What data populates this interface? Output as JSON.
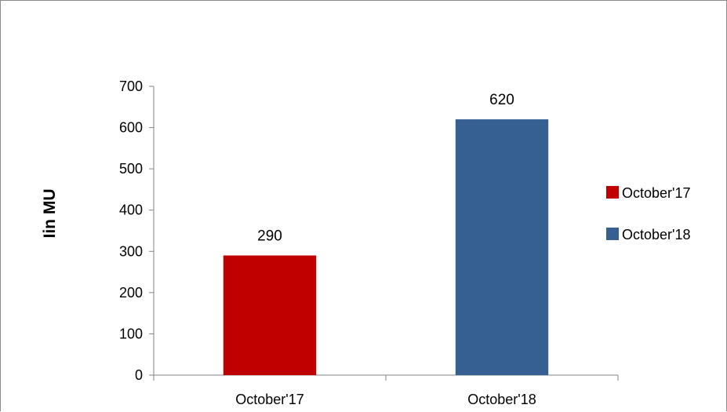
{
  "chart_data": {
    "type": "bar",
    "title": "",
    "xlabel": "",
    "ylabel": "Iin MU",
    "ylim": [
      0,
      700
    ],
    "yticks": [
      0,
      100,
      200,
      300,
      400,
      500,
      600,
      700
    ],
    "categories": [
      "October'17",
      "October'18"
    ],
    "values": [
      290,
      620
    ],
    "data_labels": [
      "290",
      "620"
    ],
    "colors": [
      "#c00000",
      "#376092"
    ],
    "legend": {
      "position": "right",
      "entries": [
        "October'17",
        "October'18"
      ]
    },
    "grid": false
  }
}
